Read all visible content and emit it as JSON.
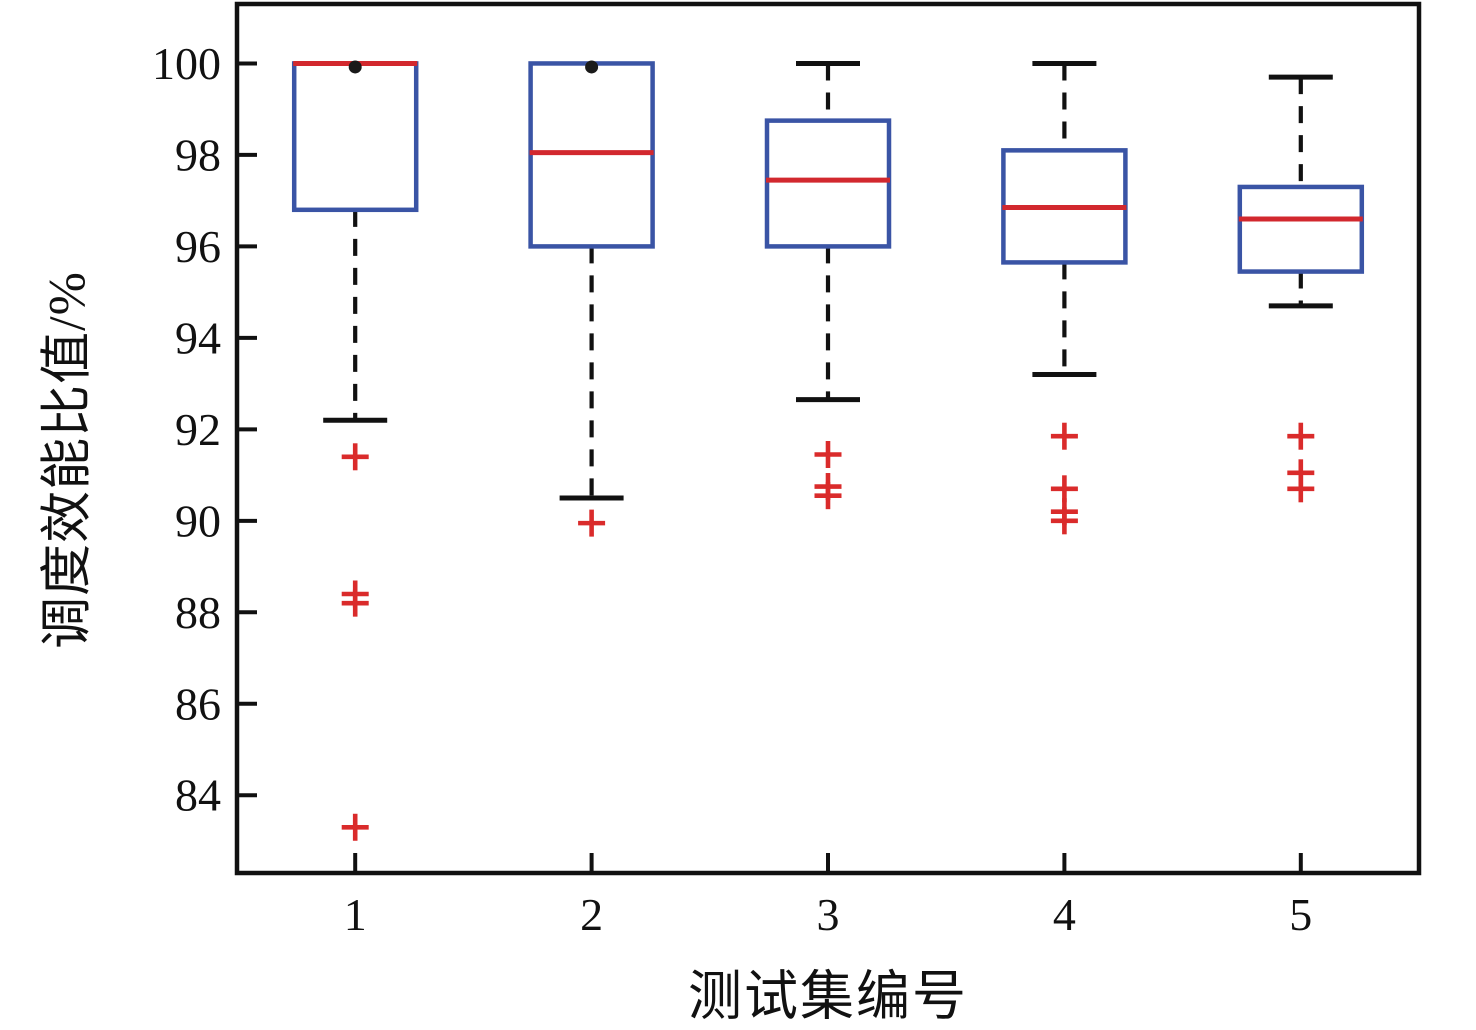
{
  "figure": {
    "background": "#ffffff"
  },
  "chart_data": {
    "type": "boxplot",
    "title": "",
    "xlabel": "测试集编号",
    "ylabel": "调度效能比值/%",
    "categories": [
      "1",
      "2",
      "3",
      "4",
      "5"
    ],
    "y_ticks": [
      84,
      86,
      88,
      90,
      92,
      94,
      96,
      98,
      100
    ],
    "ylim": [
      82.3,
      101.3
    ],
    "xlim": [
      0.5,
      5.5
    ],
    "grid": false,
    "legend": "none",
    "colors": {
      "box": "#3a54a5",
      "median": "#d2282e",
      "outlier": "#da2b2b",
      "whisker": "#111111",
      "frame": "#111111",
      "dot": "#1a1a1a"
    },
    "series": [
      {
        "category": "1",
        "whisker_low": 92.2,
        "q1": 96.8,
        "median": 100.0,
        "q3": 100.0,
        "whisker_high": 100.0,
        "outliers": [
          91.4,
          88.4,
          88.2,
          83.3
        ],
        "top_dots": [
          100.0
        ]
      },
      {
        "category": "2",
        "whisker_low": 90.5,
        "q1": 96.0,
        "median": 98.05,
        "q3": 100.0,
        "whisker_high": 100.0,
        "outliers": [
          89.95
        ],
        "top_dots": [
          100.0
        ]
      },
      {
        "category": "3",
        "whisker_low": 92.65,
        "q1": 96.0,
        "median": 97.45,
        "q3": 98.75,
        "whisker_high": 100.0,
        "outliers": [
          91.45,
          90.75,
          90.55
        ],
        "top_dots": []
      },
      {
        "category": "4",
        "whisker_low": 93.2,
        "q1": 95.65,
        "median": 96.85,
        "q3": 98.1,
        "whisker_high": 100.0,
        "outliers": [
          91.85,
          90.7,
          90.2,
          90.0
        ],
        "top_dots": []
      },
      {
        "category": "5",
        "whisker_low": 94.7,
        "q1": 95.45,
        "median": 96.6,
        "q3": 97.3,
        "whisker_high": 99.7,
        "outliers": [
          91.85,
          91.05,
          90.7
        ],
        "top_dots": []
      }
    ]
  }
}
